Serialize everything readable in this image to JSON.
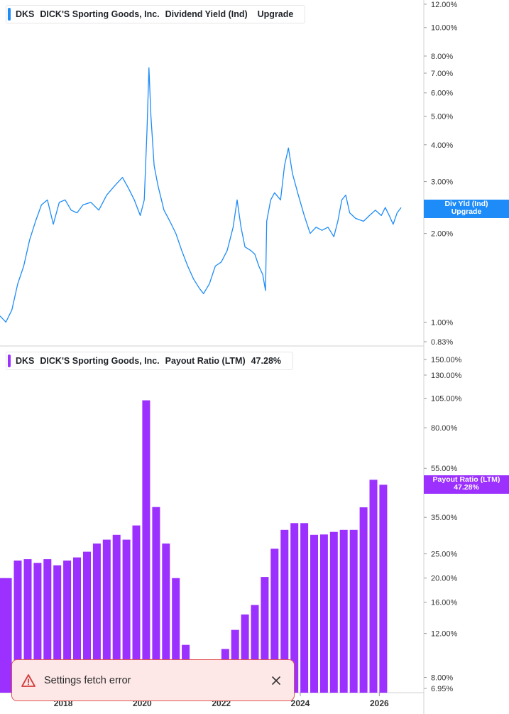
{
  "chart_data": [
    {
      "type": "line",
      "ticker": "DKS",
      "company": "DICK'S Sporting Goods, Inc.",
      "metric": "Dividend Yield (Ind)",
      "upgrade_label": "Upgrade",
      "scale": "log",
      "y_ticks": [
        "12.00%",
        "10.00%",
        "8.00%",
        "7.00%",
        "6.00%",
        "5.00%",
        "4.00%",
        "3.00%",
        "2.00%",
        "1.00%",
        "0.83%"
      ],
      "y_tick_values": [
        12,
        10,
        8,
        7,
        6,
        5,
        4,
        3,
        2,
        1,
        0.83
      ],
      "ylim": [
        0.83,
        12.4
      ],
      "xlim": [
        2016.4,
        2027.0
      ],
      "points": [
        [
          2016.4,
          1.05
        ],
        [
          2016.55,
          1.0
        ],
        [
          2016.7,
          1.1
        ],
        [
          2016.85,
          1.35
        ],
        [
          2017.0,
          1.55
        ],
        [
          2017.15,
          1.9
        ],
        [
          2017.3,
          2.2
        ],
        [
          2017.45,
          2.5
        ],
        [
          2017.6,
          2.6
        ],
        [
          2017.75,
          2.15
        ],
        [
          2017.9,
          2.55
        ],
        [
          2018.05,
          2.6
        ],
        [
          2018.2,
          2.4
        ],
        [
          2018.35,
          2.35
        ],
        [
          2018.5,
          2.5
        ],
        [
          2018.7,
          2.55
        ],
        [
          2018.9,
          2.4
        ],
        [
          2019.1,
          2.7
        ],
        [
          2019.3,
          2.9
        ],
        [
          2019.5,
          3.1
        ],
        [
          2019.65,
          2.85
        ],
        [
          2019.8,
          2.6
        ],
        [
          2019.95,
          2.3
        ],
        [
          2020.05,
          2.6
        ],
        [
          2020.12,
          4.5
        ],
        [
          2020.17,
          7.3
        ],
        [
          2020.22,
          5.0
        ],
        [
          2020.3,
          3.4
        ],
        [
          2020.4,
          2.9
        ],
        [
          2020.55,
          2.4
        ],
        [
          2020.7,
          2.2
        ],
        [
          2020.85,
          2.0
        ],
        [
          2021.0,
          1.75
        ],
        [
          2021.15,
          1.55
        ],
        [
          2021.3,
          1.4
        ],
        [
          2021.45,
          1.3
        ],
        [
          2021.55,
          1.25
        ],
        [
          2021.7,
          1.35
        ],
        [
          2021.85,
          1.55
        ],
        [
          2022.0,
          1.6
        ],
        [
          2022.15,
          1.75
        ],
        [
          2022.3,
          2.1
        ],
        [
          2022.4,
          2.6
        ],
        [
          2022.5,
          2.1
        ],
        [
          2022.6,
          1.8
        ],
        [
          2022.75,
          1.75
        ],
        [
          2022.85,
          1.7
        ],
        [
          2022.95,
          1.55
        ],
        [
          2023.05,
          1.45
        ],
        [
          2023.12,
          1.28
        ],
        [
          2023.15,
          2.2
        ],
        [
          2023.25,
          2.6
        ],
        [
          2023.35,
          2.75
        ],
        [
          2023.5,
          2.6
        ],
        [
          2023.6,
          3.4
        ],
        [
          2023.7,
          3.9
        ],
        [
          2023.8,
          3.2
        ],
        [
          2023.95,
          2.7
        ],
        [
          2024.1,
          2.3
        ],
        [
          2024.25,
          2.0
        ],
        [
          2024.4,
          2.1
        ],
        [
          2024.55,
          2.05
        ],
        [
          2024.7,
          2.1
        ],
        [
          2024.85,
          1.95
        ],
        [
          2024.95,
          2.2
        ],
        [
          2025.05,
          2.6
        ],
        [
          2025.15,
          2.7
        ],
        [
          2025.25,
          2.35
        ],
        [
          2025.4,
          2.25
        ],
        [
          2025.6,
          2.2
        ],
        [
          2025.75,
          2.3
        ],
        [
          2025.9,
          2.4
        ],
        [
          2026.05,
          2.3
        ],
        [
          2026.15,
          2.45
        ],
        [
          2026.25,
          2.3
        ],
        [
          2026.35,
          2.15
        ],
        [
          2026.45,
          2.35
        ],
        [
          2026.55,
          2.45
        ]
      ],
      "tag": {
        "line1": "Div Yld (Ind)",
        "line2": "Upgrade",
        "value": 2.43,
        "color": "#1d8cf8"
      },
      "color": "#1d8cf8"
    },
    {
      "type": "bar",
      "ticker": "DKS",
      "company": "DICK'S Sporting Goods, Inc.",
      "metric": "Payout Ratio (LTM)",
      "latest_value": "47.28%",
      "scale": "log",
      "y_ticks": [
        "150.00%",
        "130.00%",
        "105.00%",
        "80.00%",
        "55.00%",
        "35.00%",
        "25.00%",
        "20.00%",
        "16.00%",
        "12.00%",
        "8.00%",
        "6.95%"
      ],
      "y_tick_values": [
        150,
        130,
        105,
        80,
        55,
        35,
        25,
        20,
        16,
        12,
        8,
        6.95
      ],
      "ylim": [
        6.95,
        170
      ],
      "xlim": [
        2016.4,
        2027.0
      ],
      "x_ticks": [
        "2018",
        "2020",
        "2022",
        "2024",
        "2026"
      ],
      "x_tick_values": [
        2018,
        2020,
        2022,
        2024,
        2026
      ],
      "bars": [
        [
          2016.42,
          20
        ],
        [
          2016.6,
          20
        ],
        [
          2016.85,
          23.5
        ],
        [
          2017.1,
          23.8
        ],
        [
          2017.35,
          23
        ],
        [
          2017.6,
          23.8
        ],
        [
          2017.85,
          22.5
        ],
        [
          2018.1,
          23.5
        ],
        [
          2018.35,
          24.2
        ],
        [
          2018.6,
          25.5
        ],
        [
          2018.85,
          27.5
        ],
        [
          2019.1,
          28.5
        ],
        [
          2019.35,
          29.8
        ],
        [
          2019.6,
          28.5
        ],
        [
          2019.85,
          32.5
        ],
        [
          2020.1,
          103
        ],
        [
          2020.35,
          38.5
        ],
        [
          2020.6,
          27.5
        ],
        [
          2020.85,
          20
        ],
        [
          2021.1,
          10.8
        ],
        [
          2021.35,
          8.3
        ],
        [
          2021.6,
          7.4
        ],
        [
          2021.85,
          8.3
        ],
        [
          2022.1,
          10.4
        ],
        [
          2022.35,
          12.4
        ],
        [
          2022.6,
          14.3
        ],
        [
          2022.85,
          15.6
        ],
        [
          2023.1,
          20.2
        ],
        [
          2023.35,
          26.2
        ],
        [
          2023.6,
          31.2
        ],
        [
          2023.85,
          33.2
        ],
        [
          2024.1,
          33.2
        ],
        [
          2024.35,
          29.8
        ],
        [
          2024.6,
          29.9
        ],
        [
          2024.85,
          30.6
        ],
        [
          2025.1,
          31.2
        ],
        [
          2025.35,
          31.2
        ],
        [
          2025.6,
          38.4
        ],
        [
          2025.85,
          49.5
        ],
        [
          2026.1,
          47.3
        ]
      ],
      "tag": {
        "line1": "Payout Ratio (LTM)",
        "line2": "47.28%",
        "value": 47.28,
        "color": "#9b30ff"
      },
      "color": "#9b30ff"
    }
  ],
  "toast": {
    "message": "Settings fetch error",
    "icon": "warning-icon",
    "close_icon": "close-icon"
  }
}
